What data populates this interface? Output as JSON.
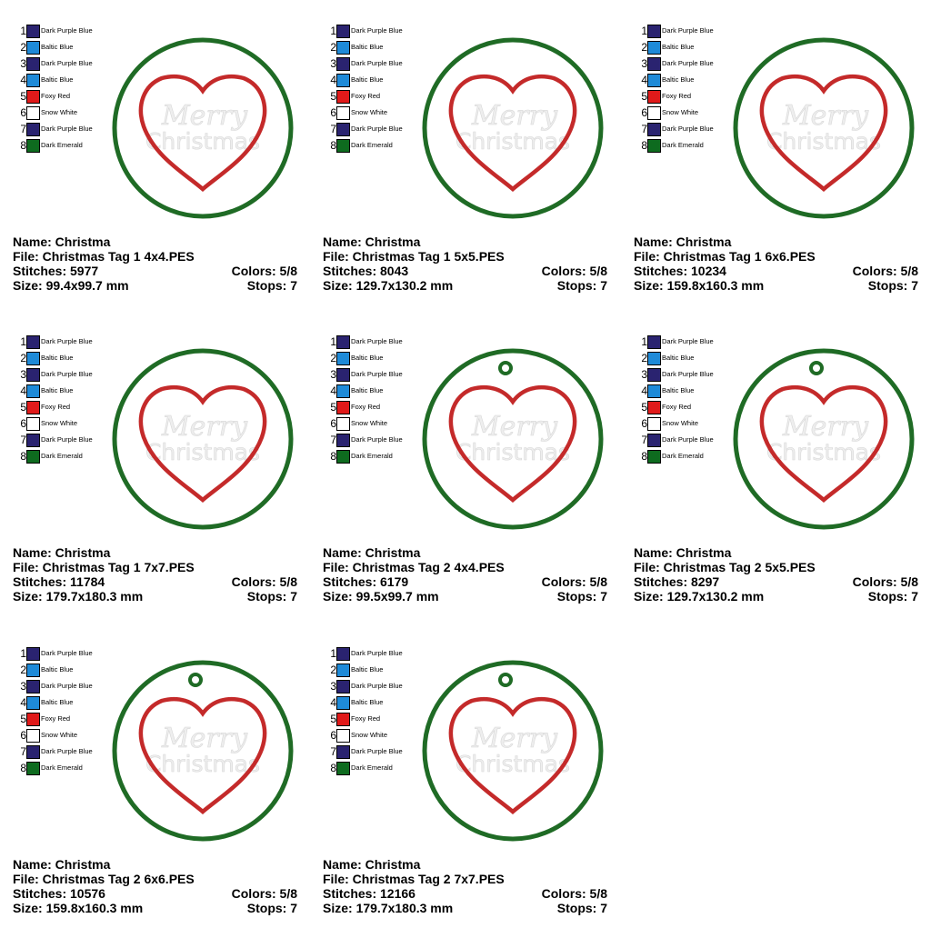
{
  "palette": [
    {
      "num": "1",
      "name": "Dark Purple Blue",
      "color": "#2a2370"
    },
    {
      "num": "2",
      "name": "Baltic Blue",
      "color": "#1e8ad8"
    },
    {
      "num": "3",
      "name": "Dark Purple Blue",
      "color": "#2a2370"
    },
    {
      "num": "4",
      "name": "Baltic Blue",
      "color": "#1e8ad8"
    },
    {
      "num": "5",
      "name": "Foxy Red",
      "color": "#e01a1a"
    },
    {
      "num": "6",
      "name": "Snow White",
      "color": "#ffffff"
    },
    {
      "num": "7",
      "name": "Dark Purple Blue",
      "color": "#2a2370"
    },
    {
      "num": "8",
      "name": "Dark Emerald",
      "color": "#0e6b1f"
    }
  ],
  "embroidery": {
    "text_line1": "Merry",
    "text_line2": "Christmas",
    "ring_color": "#1f6b25",
    "heart_color": "#c42a2a",
    "text_color": "#eeeeee"
  },
  "designs": [
    {
      "name": "Name: Christma",
      "file": "File: Christmas Tag 1 4x4.PES",
      "stitches": "Stitches: 5977",
      "colors": "Colors: 5/8",
      "size": "Size: 99.4x99.7 mm",
      "stops": "Stops: 7",
      "hanging_loop": false
    },
    {
      "name": "Name: Christma",
      "file": "File: Christmas Tag 1 5x5.PES",
      "stitches": "Stitches: 8043",
      "colors": "Colors: 5/8",
      "size": "Size: 129.7x130.2 mm",
      "stops": "Stops: 7",
      "hanging_loop": false
    },
    {
      "name": "Name: Christma",
      "file": "File: Christmas Tag 1 6x6.PES",
      "stitches": "Stitches: 10234",
      "colors": "Colors: 5/8",
      "size": "Size: 159.8x160.3 mm",
      "stops": "Stops: 7",
      "hanging_loop": false
    },
    {
      "name": "Name: Christma",
      "file": "File: Christmas Tag 1 7x7.PES",
      "stitches": "Stitches: 11784",
      "colors": "Colors: 5/8",
      "size": "Size: 179.7x180.3 mm",
      "stops": "Stops: 7",
      "hanging_loop": false
    },
    {
      "name": "Name: Christma",
      "file": "File: Christmas Tag 2 4x4.PES",
      "stitches": "Stitches: 6179",
      "colors": "Colors: 5/8",
      "size": "Size: 99.5x99.7 mm",
      "stops": "Stops: 7",
      "hanging_loop": true
    },
    {
      "name": "Name: Christma",
      "file": "File: Christmas Tag 2 5x5.PES",
      "stitches": "Stitches: 8297",
      "colors": "Colors: 5/8",
      "size": "Size: 129.7x130.2 mm",
      "stops": "Stops: 7",
      "hanging_loop": true
    },
    {
      "name": "Name: Christma",
      "file": "File: Christmas Tag 2 6x6.PES",
      "stitches": "Stitches: 10576",
      "colors": "Colors: 5/8",
      "size": "Size: 159.8x160.3 mm",
      "stops": "Stops: 7",
      "hanging_loop": true
    },
    {
      "name": "Name: Christma",
      "file": "File: Christmas Tag 2 7x7.PES",
      "stitches": "Stitches: 12166",
      "colors": "Colors: 5/8",
      "size": "Size: 179.7x180.3 mm",
      "stops": "Stops: 7",
      "hanging_loop": true
    }
  ]
}
